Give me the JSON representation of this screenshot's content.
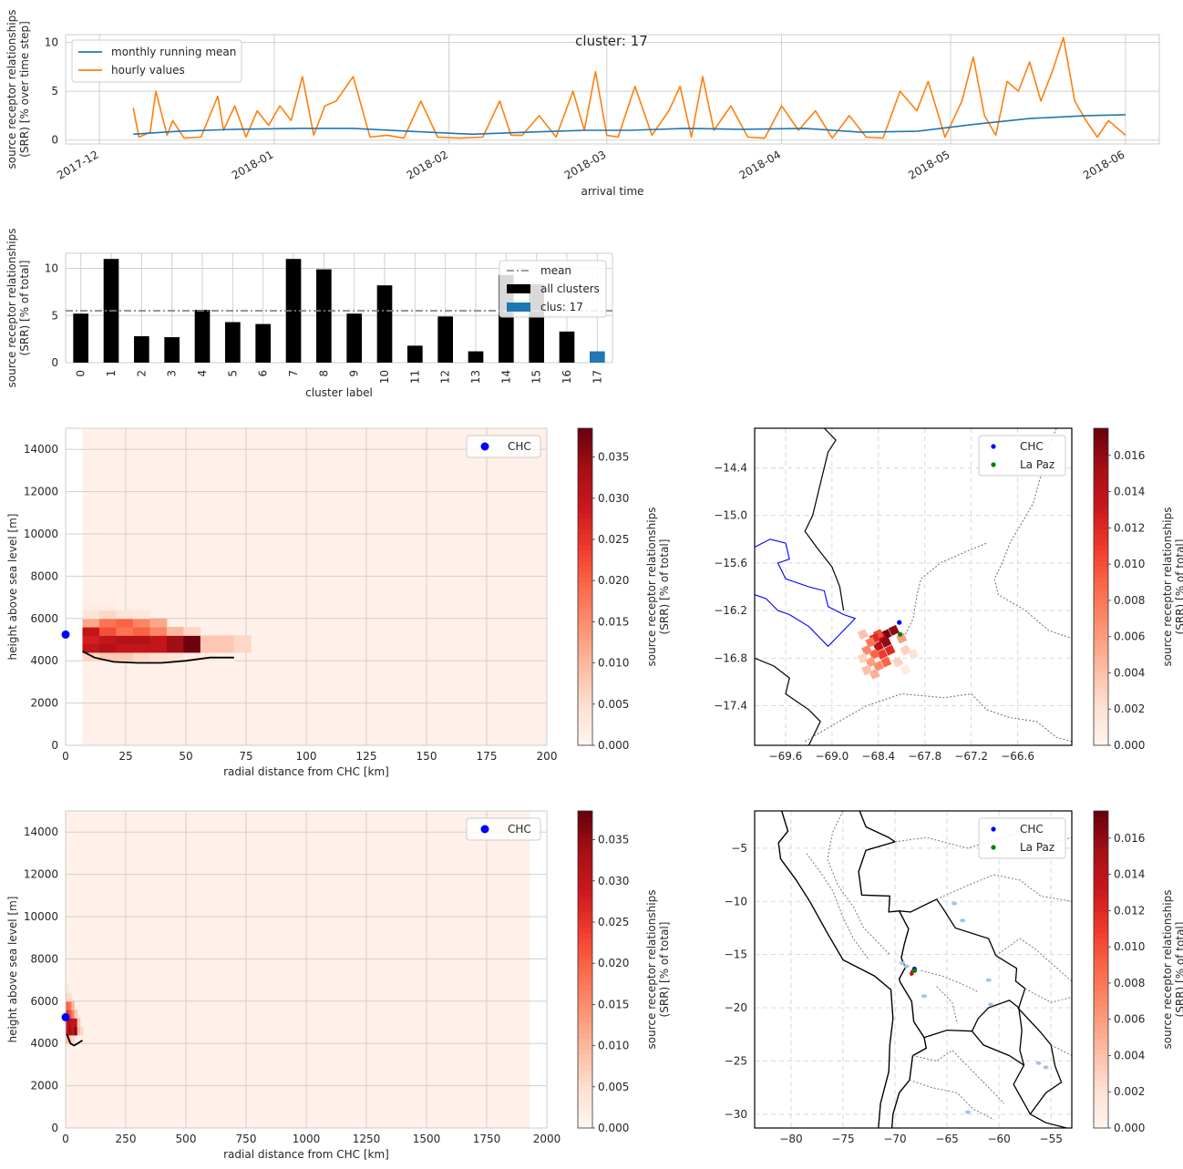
{
  "figure": {
    "suptitle": "cluster: 17"
  },
  "chart_data": [
    {
      "id": "timeseries",
      "type": "line",
      "xlabel": "arrival time",
      "ylabel": [
        "source receptor relationships",
        "(SRR) [% over time step]"
      ],
      "x_ticks": [
        "2017-12",
        "2018-01",
        "2018-02",
        "2018-03",
        "2018-04",
        "2018-05",
        "2018-06"
      ],
      "x_range": [
        "2017-11-25",
        "2018-06-07"
      ],
      "ylim": [
        -0.4,
        10.8
      ],
      "y_ticks": [
        0,
        5,
        10
      ],
      "grid": true,
      "legend": "top-left",
      "series": [
        {
          "name": "monthly running mean",
          "color": "#1f77b4",
          "x": [
            "2017-12-07",
            "2017-12-15",
            "2017-12-25",
            "2018-01-05",
            "2018-01-15",
            "2018-01-25",
            "2018-02-05",
            "2018-02-15",
            "2018-02-25",
            "2018-03-05",
            "2018-03-15",
            "2018-03-25",
            "2018-04-05",
            "2018-04-15",
            "2018-04-25",
            "2018-05-05",
            "2018-05-15",
            "2018-05-25",
            "2018-06-01"
          ],
          "y": [
            0.6,
            0.9,
            1.1,
            1.2,
            1.2,
            0.9,
            0.6,
            0.8,
            1.0,
            1.0,
            1.2,
            1.1,
            1.2,
            0.8,
            0.9,
            1.6,
            2.2,
            2.5,
            2.6
          ]
        },
        {
          "name": "hourly values",
          "color": "#ff7f0e",
          "x": [
            "2017-12-07",
            "2017-12-08",
            "2017-12-10",
            "2017-12-11",
            "2017-12-13",
            "2017-12-14",
            "2017-12-16",
            "2017-12-19",
            "2017-12-22",
            "2017-12-23",
            "2017-12-25",
            "2017-12-27",
            "2017-12-29",
            "2017-12-31",
            "2018-01-02",
            "2018-01-04",
            "2018-01-06",
            "2018-01-08",
            "2018-01-10",
            "2018-01-12",
            "2018-01-15",
            "2018-01-18",
            "2018-01-21",
            "2018-01-24",
            "2018-01-27",
            "2018-01-30",
            "2018-02-03",
            "2018-02-07",
            "2018-02-10",
            "2018-02-12",
            "2018-02-14",
            "2018-02-17",
            "2018-02-20",
            "2018-02-23",
            "2018-02-25",
            "2018-02-27",
            "2018-03-01",
            "2018-03-03",
            "2018-03-06",
            "2018-03-09",
            "2018-03-12",
            "2018-03-14",
            "2018-03-16",
            "2018-03-18",
            "2018-03-20",
            "2018-03-23",
            "2018-03-26",
            "2018-03-29",
            "2018-04-01",
            "2018-04-04",
            "2018-04-07",
            "2018-04-10",
            "2018-04-13",
            "2018-04-16",
            "2018-04-19",
            "2018-04-22",
            "2018-04-25",
            "2018-04-27",
            "2018-04-30",
            "2018-05-03",
            "2018-05-05",
            "2018-05-07",
            "2018-05-09",
            "2018-05-11",
            "2018-05-13",
            "2018-05-15",
            "2018-05-17",
            "2018-05-19",
            "2018-05-21",
            "2018-05-23",
            "2018-05-25",
            "2018-05-27",
            "2018-05-29",
            "2018-06-01"
          ],
          "y": [
            3.3,
            0.3,
            0.8,
            5.0,
            0.5,
            2.0,
            0.2,
            0.3,
            4.5,
            1.0,
            3.5,
            0.3,
            3.0,
            1.5,
            3.5,
            2.0,
            6.5,
            0.5,
            3.5,
            4.0,
            6.5,
            0.3,
            0.5,
            0.2,
            4.0,
            0.3,
            0.2,
            0.3,
            4.0,
            0.5,
            0.5,
            2.5,
            0.3,
            5.0,
            1.0,
            7.0,
            0.5,
            0.3,
            5.5,
            0.5,
            3.0,
            5.5,
            0.3,
            6.5,
            1.0,
            3.5,
            0.3,
            0.2,
            3.5,
            1.0,
            3.0,
            0.2,
            2.5,
            0.3,
            0.2,
            5.0,
            3.0,
            6.0,
            0.3,
            4.0,
            8.5,
            2.5,
            0.5,
            6.0,
            5.0,
            8.0,
            4.0,
            7.0,
            10.5,
            4.0,
            2.0,
            0.3,
            2.0,
            0.5
          ]
        }
      ]
    },
    {
      "id": "cluster-bars",
      "type": "bar",
      "xlabel": "cluster label",
      "ylabel": [
        "source receptor relationships",
        "(SRR) [% of total]"
      ],
      "categories": [
        "0",
        "1",
        "2",
        "3",
        "4",
        "5",
        "6",
        "7",
        "8",
        "9",
        "10",
        "11",
        "12",
        "13",
        "14",
        "15",
        "16",
        "17"
      ],
      "values": [
        5.2,
        11.0,
        2.8,
        2.7,
        5.6,
        4.3,
        4.1,
        11.0,
        9.9,
        5.2,
        8.2,
        1.8,
        4.9,
        1.2,
        9.3,
        8.3,
        3.3,
        1.2
      ],
      "highlight_index": 17,
      "mean": 5.5,
      "ylim": [
        0,
        11.6
      ],
      "y_ticks": [
        0,
        5,
        10
      ],
      "grid": true,
      "legend": "top-right",
      "legend_entries": [
        {
          "label": "mean",
          "color": "#7f7f7f",
          "kind": "dashdot"
        },
        {
          "label": "all clusters",
          "color": "#000000",
          "kind": "patch"
        },
        {
          "label": "clus: 17",
          "color": "#1f77b4",
          "kind": "patch"
        }
      ]
    },
    {
      "id": "height-near",
      "type": "heatmap",
      "xlabel": "radial distance from CHC [km]",
      "ylabel": "height above sea level [m]",
      "xlim": [
        0,
        200
      ],
      "ylim": [
        0,
        15000
      ],
      "x_ticks": [
        0,
        25,
        50,
        75,
        100,
        125,
        150,
        175,
        200
      ],
      "y_ticks": [
        0,
        2000,
        4000,
        6000,
        8000,
        10000,
        12000,
        14000
      ],
      "cell_km": 7,
      "cell_m": 400,
      "background": {
        "x": [
          7,
          200
        ],
        "value": 0.001
      },
      "cells": [
        [
          7,
          4000,
          0.006
        ],
        [
          7,
          4400,
          0.03
        ],
        [
          7,
          4800,
          0.028
        ],
        [
          7,
          5200,
          0.03
        ],
        [
          7,
          5600,
          0.012
        ],
        [
          7,
          6000,
          0.004
        ],
        [
          7,
          6400,
          0.002
        ],
        [
          14,
          4000,
          0.008
        ],
        [
          14,
          4400,
          0.032
        ],
        [
          14,
          4800,
          0.03
        ],
        [
          14,
          5200,
          0.022
        ],
        [
          14,
          5600,
          0.018
        ],
        [
          14,
          6000,
          0.006
        ],
        [
          14,
          6400,
          0.002
        ],
        [
          21,
          4000,
          0.008
        ],
        [
          21,
          4400,
          0.03
        ],
        [
          21,
          4800,
          0.032
        ],
        [
          21,
          5200,
          0.018
        ],
        [
          21,
          5600,
          0.02
        ],
        [
          21,
          6000,
          0.004
        ],
        [
          28,
          4000,
          0.006
        ],
        [
          28,
          4400,
          0.03
        ],
        [
          28,
          4800,
          0.032
        ],
        [
          28,
          5200,
          0.02
        ],
        [
          28,
          5600,
          0.016
        ],
        [
          28,
          6000,
          0.003
        ],
        [
          35,
          4000,
          0.005
        ],
        [
          35,
          4400,
          0.03
        ],
        [
          35,
          4800,
          0.03
        ],
        [
          35,
          5200,
          0.016
        ],
        [
          35,
          5600,
          0.012
        ],
        [
          42,
          4000,
          0.004
        ],
        [
          42,
          4400,
          0.034
        ],
        [
          42,
          4800,
          0.034
        ],
        [
          42,
          5200,
          0.01
        ],
        [
          49,
          4000,
          0.002
        ],
        [
          49,
          4400,
          0.038
        ],
        [
          49,
          4800,
          0.038
        ],
        [
          49,
          5200,
          0.006
        ],
        [
          56,
          4000,
          0.002
        ],
        [
          56,
          4400,
          0.008
        ],
        [
          56,
          4800,
          0.008
        ],
        [
          63,
          4000,
          0.001
        ],
        [
          63,
          4400,
          0.008
        ],
        [
          63,
          4800,
          0.008
        ],
        [
          70,
          4400,
          0.006
        ],
        [
          70,
          4800,
          0.006
        ]
      ],
      "ground": {
        "x": [
          7,
          12,
          20,
          30,
          40,
          50,
          60,
          70
        ],
        "y": [
          4450,
          4150,
          3950,
          3900,
          3900,
          4000,
          4150,
          4150
        ]
      },
      "station": {
        "label": "CHC",
        "x": 0,
        "y": 5240,
        "color": "#0000ff"
      },
      "colorbar": {
        "label": [
          "source receptor relationships",
          "(SRR) [% of total]"
        ],
        "min": 0,
        "max": 0.0385,
        "ticks": [
          0,
          0.005,
          0.01,
          0.015,
          0.02,
          0.025,
          0.03,
          0.035
        ],
        "tick_labels": [
          "0.000",
          "0.005",
          "0.010",
          "0.015",
          "0.020",
          "0.025",
          "0.030",
          "0.035"
        ]
      },
      "legend": "top-right"
    },
    {
      "id": "height-far",
      "type": "heatmap",
      "xlabel": "radial distance from CHC [km]",
      "ylabel": "height above sea level [m]",
      "xlim": [
        0,
        2000
      ],
      "ylim": [
        0,
        15000
      ],
      "x_ticks": [
        0,
        250,
        500,
        750,
        1000,
        1250,
        1500,
        1750,
        2000
      ],
      "y_ticks": [
        0,
        2000,
        4000,
        6000,
        8000,
        10000,
        12000,
        14000
      ],
      "cell_km": 12,
      "cell_m": 400,
      "background": {
        "x": [
          0,
          1930
        ],
        "value": 0.001
      },
      "cells": [
        [
          0,
          4000,
          0.01
        ],
        [
          0,
          4400,
          0.03
        ],
        [
          0,
          4800,
          0.03
        ],
        [
          0,
          5200,
          0.025
        ],
        [
          0,
          5600,
          0.02
        ],
        [
          0,
          6000,
          0.006
        ],
        [
          0,
          6400,
          0.003
        ],
        [
          12,
          4000,
          0.008
        ],
        [
          12,
          4400,
          0.034
        ],
        [
          12,
          4800,
          0.032
        ],
        [
          12,
          5200,
          0.022
        ],
        [
          12,
          5600,
          0.018
        ],
        [
          12,
          6000,
          0.005
        ],
        [
          24,
          4000,
          0.006
        ],
        [
          24,
          4400,
          0.03
        ],
        [
          24,
          4800,
          0.03
        ],
        [
          24,
          5200,
          0.016
        ],
        [
          24,
          5600,
          0.01
        ],
        [
          36,
          4400,
          0.036
        ],
        [
          36,
          4800,
          0.03
        ],
        [
          36,
          5200,
          0.008
        ],
        [
          48,
          4400,
          0.01
        ],
        [
          48,
          4800,
          0.008
        ],
        [
          60,
          4400,
          0.006
        ]
      ],
      "ground": {
        "x": [
          5,
          20,
          35,
          50,
          70
        ],
        "y": [
          4450,
          4000,
          3900,
          4000,
          4150
        ]
      },
      "station": {
        "label": "CHC",
        "x": 0,
        "y": 5240,
        "color": "#0000ff"
      },
      "colorbar": {
        "label": [
          "source receptor relationships",
          "(SRR) [% of total]"
        ],
        "min": 0,
        "max": 0.0385,
        "ticks": [
          0,
          0.005,
          0.01,
          0.015,
          0.02,
          0.025,
          0.03,
          0.035
        ],
        "tick_labels": [
          "0.000",
          "0.005",
          "0.010",
          "0.015",
          "0.020",
          "0.025",
          "0.030",
          "0.035"
        ]
      },
      "legend": "top-right"
    },
    {
      "id": "map-zoom",
      "type": "heatmap",
      "xlim": [
        -70.0,
        -65.9
      ],
      "ylim": [
        -17.9,
        -13.9
      ],
      "x_ticks": [
        -69.6,
        -69.0,
        -68.4,
        -67.8,
        -67.2,
        -66.6
      ],
      "x_tick_labels": [
        "−69.6",
        "−69.0",
        "−68.4",
        "−67.8",
        "−67.2",
        "−66.6"
      ],
      "y_ticks": [
        -14.4,
        -15.0,
        -15.6,
        -16.2,
        -16.8,
        -17.4
      ],
      "y_tick_labels": [
        "−14.4",
        "−15.0",
        "−15.6",
        "−16.2",
        "−16.8",
        "−17.4"
      ],
      "grid": "dashed",
      "footprint": [
        [
          -68.2,
          -16.45,
          0.016
        ],
        [
          -68.3,
          -16.5,
          0.017
        ],
        [
          -68.35,
          -16.55,
          0.015
        ],
        [
          -68.4,
          -16.5,
          0.01
        ],
        [
          -68.45,
          -16.55,
          0.012
        ],
        [
          -68.3,
          -16.6,
          0.016
        ],
        [
          -68.4,
          -16.65,
          0.014
        ],
        [
          -68.5,
          -16.6,
          0.008
        ],
        [
          -68.25,
          -16.7,
          0.012
        ],
        [
          -68.35,
          -16.75,
          0.011
        ],
        [
          -68.45,
          -16.75,
          0.009
        ],
        [
          -68.55,
          -16.7,
          0.007
        ],
        [
          -68.3,
          -16.85,
          0.009
        ],
        [
          -68.4,
          -16.9,
          0.007
        ],
        [
          -68.5,
          -16.85,
          0.006
        ],
        [
          -68.45,
          -17.0,
          0.005
        ],
        [
          -68.55,
          -16.95,
          0.004
        ],
        [
          -68.1,
          -16.55,
          0.006
        ],
        [
          -68.05,
          -16.7,
          0.003
        ],
        [
          -68.15,
          -16.85,
          0.003
        ],
        [
          -67.95,
          -16.75,
          0.002
        ],
        [
          -68.05,
          -16.95,
          0.001
        ],
        [
          -68.6,
          -16.5,
          0.004
        ],
        [
          -68.6,
          -16.8,
          0.003
        ]
      ],
      "points": [
        {
          "label": "CHC",
          "lon": -68.13,
          "lat": -16.35,
          "color": "#0000ff"
        },
        {
          "label": "La Paz",
          "lon": -68.12,
          "lat": -16.5,
          "color": "#008000"
        }
      ],
      "colorbar": {
        "label": [
          "source receptor relationships",
          "(SRR) [% of total]"
        ],
        "min": 0,
        "max": 0.0175,
        "ticks": [
          0,
          0.002,
          0.004,
          0.006,
          0.008,
          0.01,
          0.012,
          0.014,
          0.016
        ],
        "tick_labels": [
          "0.000",
          "0.002",
          "0.004",
          "0.006",
          "0.008",
          "0.010",
          "0.012",
          "0.014",
          "0.016"
        ]
      },
      "legend": "top-right"
    },
    {
      "id": "map-wide",
      "type": "heatmap",
      "xlim": [
        -83.5,
        -53.0
      ],
      "ylim": [
        -31.3,
        -1.5
      ],
      "x_ticks": [
        -80,
        -75,
        -70,
        -65,
        -60,
        -55
      ],
      "x_tick_labels": [
        "−80",
        "−75",
        "−70",
        "−65",
        "−60",
        "−55"
      ],
      "y_ticks": [
        -5,
        -10,
        -15,
        -20,
        -25,
        -30
      ],
      "y_tick_labels": [
        "−5",
        "−10",
        "−15",
        "−20",
        "−25",
        "−30"
      ],
      "grid": "dashed",
      "footprint": [
        [
          -68.3,
          -16.6,
          0.016
        ],
        [
          -68.4,
          -16.8,
          0.014
        ],
        [
          -68.2,
          -16.5,
          0.01
        ]
      ],
      "points": [
        {
          "label": "CHC",
          "lon": -68.13,
          "lat": -16.35,
          "color": "#0000ff"
        },
        {
          "label": "La Paz",
          "lon": -68.12,
          "lat": -16.5,
          "color": "#008000"
        }
      ],
      "colorbar": {
        "label": [
          "source receptor relationships",
          "(SRR) [% of total]"
        ],
        "min": 0,
        "max": 0.0175,
        "ticks": [
          0,
          0.002,
          0.004,
          0.006,
          0.008,
          0.01,
          0.012,
          0.014,
          0.016
        ],
        "tick_labels": [
          "0.000",
          "0.002",
          "0.004",
          "0.006",
          "0.008",
          "0.010",
          "0.012",
          "0.014",
          "0.016"
        ]
      },
      "legend": "top-right"
    }
  ]
}
